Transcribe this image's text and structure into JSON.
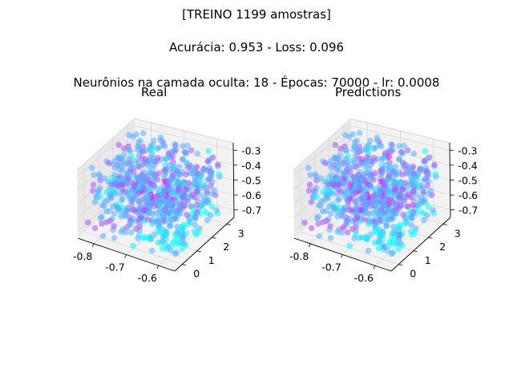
{
  "figure": {
    "title_lines": [
      "[TREINO 1199 amostras]",
      "Acurácia: 0.953 - Loss: 0.096",
      "Neurônios na camada oculta: 18 - Épocas: 70000 - lr: 0.0008"
    ]
  },
  "chart_data": [
    {
      "type": "scatter",
      "title": "Real",
      "dims": 3,
      "xlim": [
        -0.86,
        -0.52
      ],
      "ylim": [
        -0.3,
        3.3
      ],
      "zlim": [
        -0.72,
        -0.28
      ],
      "x_ticks": [
        "-0.8",
        "-0.7",
        "-0.6"
      ],
      "y_ticks": [
        "0",
        "1",
        "2",
        "3"
      ],
      "z_ticks": [
        "-0.3",
        "-0.4",
        "-0.5",
        "-0.6",
        "-0.7"
      ],
      "colormap": "cool",
      "n_points": 1199,
      "marker_alpha": 0.55
    },
    {
      "type": "scatter",
      "title": "Predictions",
      "dims": 3,
      "xlim": [
        -0.86,
        -0.52
      ],
      "ylim": [
        -0.3,
        3.3
      ],
      "zlim": [
        -0.72,
        -0.28
      ],
      "x_ticks": [
        "-0.8",
        "-0.7",
        "-0.6"
      ],
      "y_ticks": [
        "0",
        "1",
        "2",
        "3"
      ],
      "z_ticks": [
        "-0.3",
        "-0.4",
        "-0.5",
        "-0.6",
        "-0.7"
      ],
      "colormap": "cool",
      "n_points": 1199,
      "marker_alpha": 0.55
    }
  ],
  "colors": {
    "class_0": "#00ffff",
    "class_1": "#5ab0ff",
    "class_2": "#a855ff",
    "class_3": "#ff00ff",
    "pane": "#f2f2f2",
    "pane_side": "#e9e9e9",
    "grid": "#d8d8d8",
    "axis": "#000000"
  }
}
